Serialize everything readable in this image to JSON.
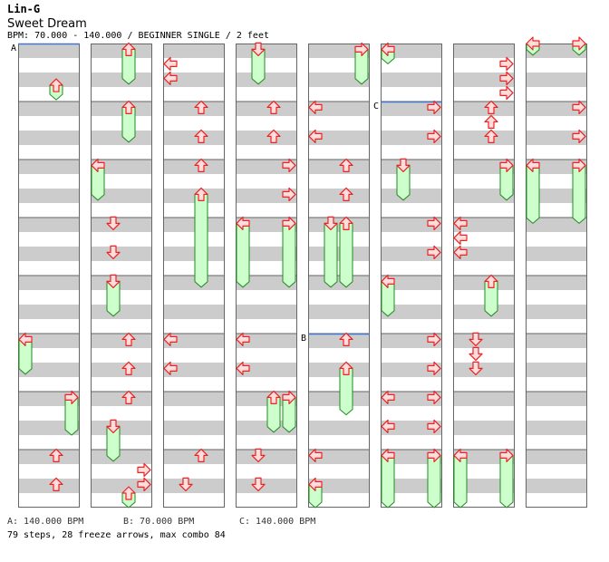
{
  "header": {
    "artist": "Lin-G",
    "title": "Sweet Dream",
    "bpm_line": "BPM: 70.000 - 140.000 / BEGINNER SINGLE / 2 feet"
  },
  "footer": {
    "bpm_a": "A: 140.000 BPM",
    "bpm_b": "B: 70.000 BPM",
    "bpm_c": "C: 140.000 BPM",
    "stats": "79 steps, 28 freeze arrows, max combo 84"
  },
  "colors": {
    "stripe": "#cccccc",
    "arrow_fill": "#ffdddd",
    "arrow_stroke": "#ee2222",
    "freeze_fill": "#ccffcc",
    "freeze_stroke": "#228822",
    "bpm_marker": "#4477cc"
  },
  "bpm_markers": [
    {
      "label": "A",
      "column": 0,
      "measure": 0
    },
    {
      "label": "C",
      "column": 5,
      "measure": 1
    },
    {
      "label": "B",
      "column": 4,
      "measure": 5
    }
  ],
  "columns": [
    {
      "freezes": [
        [
          2,
          0,
          0.72
        ],
        [
          0,
          5,
          0.1,
          5,
          0.7
        ],
        [
          3,
          6,
          0.1,
          6,
          0.75
        ]
      ],
      "arrows": [
        [
          2,
          7,
          0.1
        ],
        [
          2,
          7,
          0.6
        ]
      ]
    },
    {
      "freezes": [
        [
          2,
          0,
          0.1,
          0,
          0.7
        ],
        [
          2,
          1,
          0.1,
          1,
          0.7
        ],
        [
          0,
          2,
          0.1,
          2,
          0.7
        ],
        [
          1,
          4,
          0.1,
          4,
          0.7
        ],
        [
          2,
          7,
          0.75,
          7,
          1.0
        ],
        [
          1,
          6,
          0.6,
          7,
          0.2
        ]
      ],
      "arrows": [
        [
          1,
          3,
          0.1
        ],
        [
          1,
          3,
          0.6
        ],
        [
          2,
          5,
          0.1
        ],
        [
          2,
          5,
          0.6
        ],
        [
          2,
          6,
          0.1
        ],
        [
          3,
          7,
          0.35
        ],
        [
          3,
          7,
          0.6
        ]
      ]
    },
    {
      "freezes": [
        [
          2,
          2,
          0.6,
          4,
          0.2
        ]
      ],
      "arrows": [
        [
          0,
          0,
          0.35
        ],
        [
          0,
          0,
          0.6
        ],
        [
          2,
          1,
          0.1
        ],
        [
          2,
          1,
          0.6
        ],
        [
          2,
          2,
          0.1
        ],
        [
          0,
          5,
          0.1
        ],
        [
          0,
          5,
          0.6
        ],
        [
          2,
          7,
          0.1
        ],
        [
          1,
          7,
          0.6
        ]
      ]
    },
    {
      "freezes": [
        [
          1,
          0,
          0.1,
          0,
          0.7
        ],
        [
          0,
          3,
          0.1,
          4,
          0.2
        ],
        [
          3,
          3,
          0.1,
          4,
          0.2
        ],
        [
          3,
          6,
          0.1,
          6,
          0.7
        ],
        [
          2,
          6,
          0.1,
          6,
          0.7
        ]
      ],
      "arrows": [
        [
          2,
          1,
          0.1
        ],
        [
          2,
          1,
          0.6
        ],
        [
          3,
          2,
          0.1
        ],
        [
          3,
          2,
          0.6
        ],
        [
          0,
          5,
          0.1
        ],
        [
          0,
          5,
          0.6
        ],
        [
          1,
          7,
          0.1
        ],
        [
          1,
          7,
          0.6
        ]
      ]
    },
    {
      "freezes": [
        [
          3,
          0,
          0.1,
          0,
          0.7
        ],
        [
          1,
          3,
          0.1,
          4,
          0.2
        ],
        [
          2,
          3,
          0.1,
          4,
          0.2
        ],
        [
          2,
          5,
          0.6,
          6,
          0.4
        ],
        [
          0,
          7,
          0.6,
          7,
          1.0
        ]
      ],
      "arrows": [
        [
          0,
          1,
          0.1
        ],
        [
          0,
          1,
          0.6
        ],
        [
          2,
          2,
          0.1
        ],
        [
          2,
          2,
          0.6
        ],
        [
          2,
          5,
          0.1
        ],
        [
          0,
          7,
          0.1
        ]
      ]
    },
    {
      "freezes": [
        [
          0,
          0,
          0.1,
          0,
          0.35
        ],
        [
          1,
          2,
          0.1,
          2,
          0.7
        ],
        [
          0,
          4,
          0.1,
          4,
          0.7
        ],
        [
          0,
          7,
          0.1,
          7,
          1.0
        ],
        [
          3,
          7,
          0.1,
          7,
          1.0
        ]
      ],
      "arrows": [
        [
          3,
          1,
          0.1
        ],
        [
          3,
          1,
          0.6
        ],
        [
          3,
          3,
          0.1
        ],
        [
          3,
          3,
          0.6
        ],
        [
          3,
          5,
          0.1
        ],
        [
          3,
          5,
          0.6
        ],
        [
          0,
          6,
          0.1
        ],
        [
          0,
          6,
          0.6
        ],
        [
          3,
          6,
          0.1
        ],
        [
          3,
          6,
          0.6
        ]
      ]
    },
    {
      "freezes": [
        [
          3,
          2,
          0.1,
          2,
          0.7
        ],
        [
          2,
          4,
          0.1,
          4,
          0.7
        ],
        [
          0,
          7,
          0.1,
          7,
          1.0
        ],
        [
          3,
          7,
          0.1,
          7,
          1.0
        ]
      ],
      "arrows": [
        [
          3,
          0,
          0.35
        ],
        [
          3,
          0,
          0.6
        ],
        [
          3,
          0,
          0.85
        ],
        [
          2,
          1,
          0.1
        ],
        [
          2,
          1,
          0.35
        ],
        [
          2,
          1,
          0.6
        ],
        [
          0,
          3,
          0.1
        ],
        [
          0,
          3,
          0.35
        ],
        [
          0,
          3,
          0.6
        ],
        [
          1,
          5,
          0.1
        ],
        [
          1,
          5,
          0.35
        ],
        [
          1,
          5,
          0.6
        ]
      ]
    },
    {
      "freezes": [
        [
          0,
          0,
          0,
          0,
          0.2
        ],
        [
          3,
          0,
          0,
          0,
          0.2
        ],
        [
          0,
          2,
          0.1,
          3,
          0.1
        ],
        [
          3,
          2,
          0.1,
          3,
          0.1
        ]
      ],
      "arrows": [
        [
          3,
          1,
          0.1
        ],
        [
          3,
          1,
          0.6
        ]
      ]
    }
  ]
}
